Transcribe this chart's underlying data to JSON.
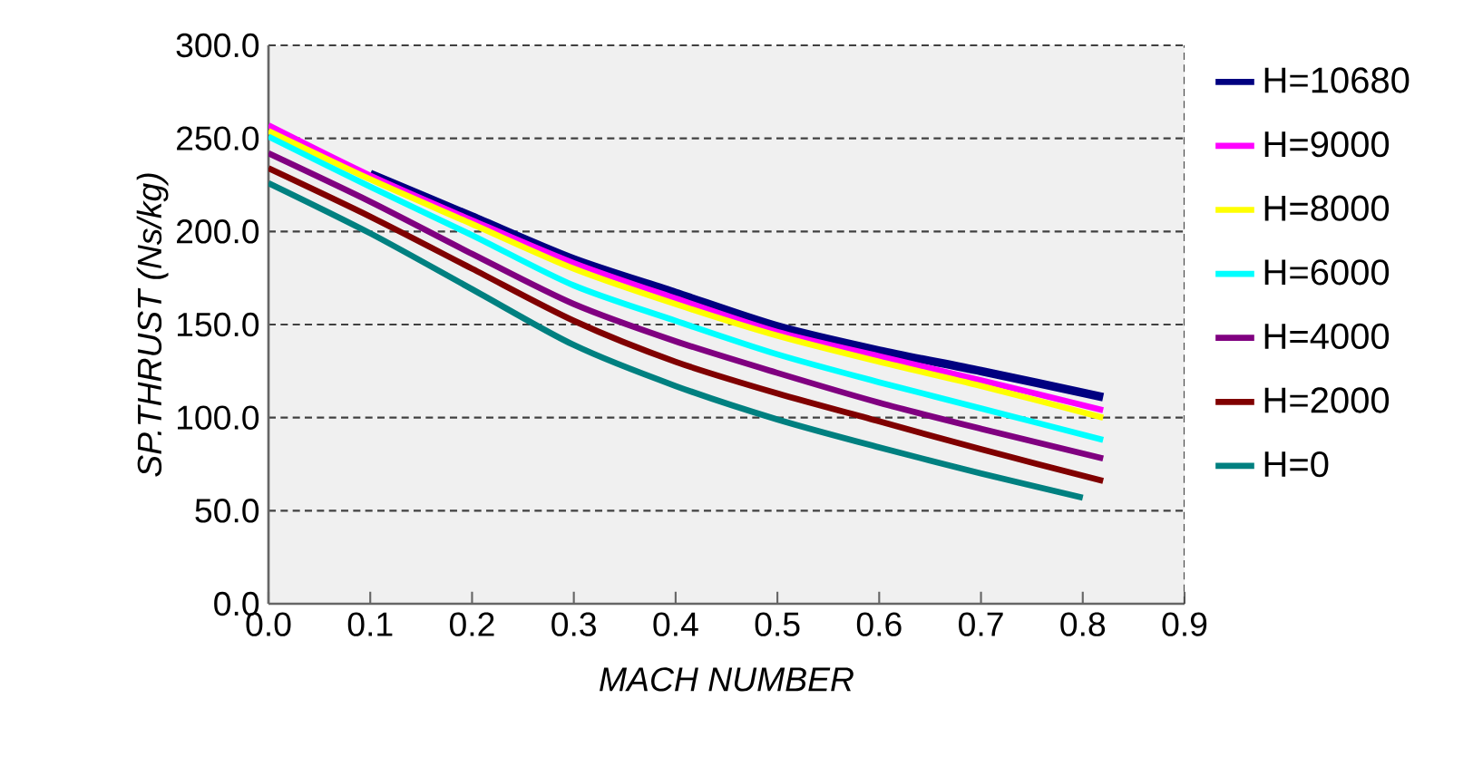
{
  "chart_data": {
    "type": "line",
    "xlabel": "MACH NUMBER",
    "ylabel": "SP.THRUST (Ns/kg)",
    "xlim": [
      0,
      0.9
    ],
    "ylim": [
      0,
      300
    ],
    "xticks": [
      {
        "value": 0,
        "label": "0.0"
      },
      {
        "value": 0.1,
        "label": "0.1"
      },
      {
        "value": 0.2,
        "label": "0.2"
      },
      {
        "value": 0.3,
        "label": "0.3"
      },
      {
        "value": 0.4,
        "label": "0.4"
      },
      {
        "value": 0.5,
        "label": "0.5"
      },
      {
        "value": 0.6,
        "label": "0.6"
      },
      {
        "value": 0.7,
        "label": "0.7"
      },
      {
        "value": 0.8,
        "label": "0.8"
      },
      {
        "value": 0.9,
        "label": "0.9"
      }
    ],
    "yticks": [
      {
        "value": 0,
        "label": "0.0"
      },
      {
        "value": 50,
        "label": "50.0"
      },
      {
        "value": 100,
        "label": "100.0"
      },
      {
        "value": 150,
        "label": "150.0"
      },
      {
        "value": 200,
        "label": "200.0"
      },
      {
        "value": 250,
        "label": "250.0"
      },
      {
        "value": 300,
        "label": "300.0"
      }
    ],
    "grid": "y",
    "legend": "right",
    "marker": "none",
    "line_style": "solid",
    "series": [
      {
        "name": "H=10680",
        "color": "#000080",
        "x": [
          0.1,
          0.2,
          0.3,
          0.4,
          0.5,
          0.6,
          0.7,
          0.82
        ],
        "values": [
          231,
          208,
          185,
          167,
          149,
          136,
          125,
          111
        ]
      },
      {
        "name": "H=9000",
        "color": "#ff00ff",
        "x": [
          0,
          0.1,
          0.2,
          0.3,
          0.4,
          0.5,
          0.6,
          0.7,
          0.82
        ],
        "values": [
          257,
          230,
          206,
          183,
          164,
          146,
          133,
          120,
          104
        ]
      },
      {
        "name": "H=8000",
        "color": "#ffff00",
        "x": [
          0,
          0.1,
          0.2,
          0.3,
          0.4,
          0.5,
          0.6,
          0.7,
          0.82
        ],
        "values": [
          254,
          228,
          204,
          180,
          161,
          144,
          130,
          117,
          100
        ]
      },
      {
        "name": "H=6000",
        "color": "#00ffff",
        "x": [
          0,
          0.1,
          0.2,
          0.3,
          0.4,
          0.5,
          0.6,
          0.7,
          0.82
        ],
        "values": [
          251,
          224,
          198,
          171,
          152,
          134,
          119,
          105,
          88
        ]
      },
      {
        "name": "H=4000",
        "color": "#800080",
        "x": [
          0,
          0.1,
          0.2,
          0.3,
          0.4,
          0.5,
          0.6,
          0.7,
          0.82
        ],
        "values": [
          242,
          216,
          188,
          161,
          141,
          124,
          108,
          94,
          78
        ]
      },
      {
        "name": "H=2000",
        "color": "#800000",
        "x": [
          0,
          0.1,
          0.2,
          0.3,
          0.4,
          0.5,
          0.6,
          0.7,
          0.82
        ],
        "values": [
          234,
          208,
          180,
          152,
          130,
          113,
          98,
          83,
          66
        ]
      },
      {
        "name": "H=0",
        "color": "#008080",
        "x": [
          0,
          0.1,
          0.2,
          0.3,
          0.4,
          0.5,
          0.6,
          0.7,
          0.8
        ],
        "values": [
          226,
          199,
          169,
          139,
          117,
          99,
          84,
          70,
          57
        ]
      }
    ]
  }
}
